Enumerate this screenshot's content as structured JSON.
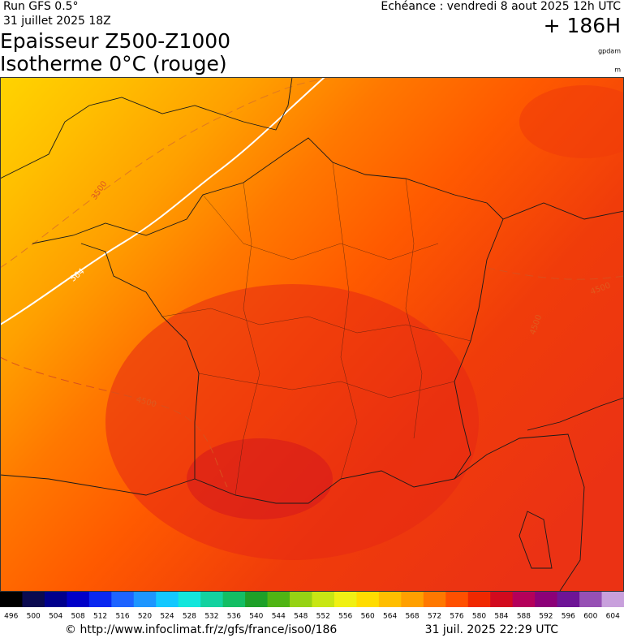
{
  "header": {
    "run": "Run GFS 0.5°",
    "run_date": "31 juillet 2025 18Z",
    "echeance": "Echéance : vendredi 8 aout 2025 12h UTC",
    "hour": "+ 186H",
    "title": "Epaisseur Z500-Z1000",
    "subtitle": "Isotherme 0°C (rouge)",
    "unit_gpdam": "gpdam",
    "unit_m": "m"
  },
  "map": {
    "contour_labels": [
      "3500",
      "564",
      "4500",
      "4500",
      "4500"
    ]
  },
  "colorbar": {
    "ticks": [
      496,
      500,
      504,
      508,
      512,
      516,
      520,
      524,
      528,
      532,
      536,
      540,
      544,
      548,
      552,
      556,
      560,
      564,
      568,
      572,
      576,
      580,
      584,
      588,
      592,
      596,
      600,
      604
    ],
    "colors": [
      "#000000",
      "#0a0a50",
      "#00008c",
      "#0000c8",
      "#0a28f0",
      "#1e64ff",
      "#1e96ff",
      "#14c8ff",
      "#14e6dc",
      "#14d2a0",
      "#14be64",
      "#1ea028",
      "#50b414",
      "#96d214",
      "#c8e614",
      "#f0f014",
      "#ffdc00",
      "#ffbe00",
      "#ffa000",
      "#ff7800",
      "#ff5000",
      "#f02800",
      "#d20a1e",
      "#b4005a",
      "#8c0078",
      "#6e1496",
      "#9650b4",
      "#c8a0dc"
    ]
  },
  "footer": {
    "source": "© http://www.infoclimat.fr/z/gfs/france/iso0/186",
    "generated": "31 juil. 2025 22:29 UTC"
  }
}
